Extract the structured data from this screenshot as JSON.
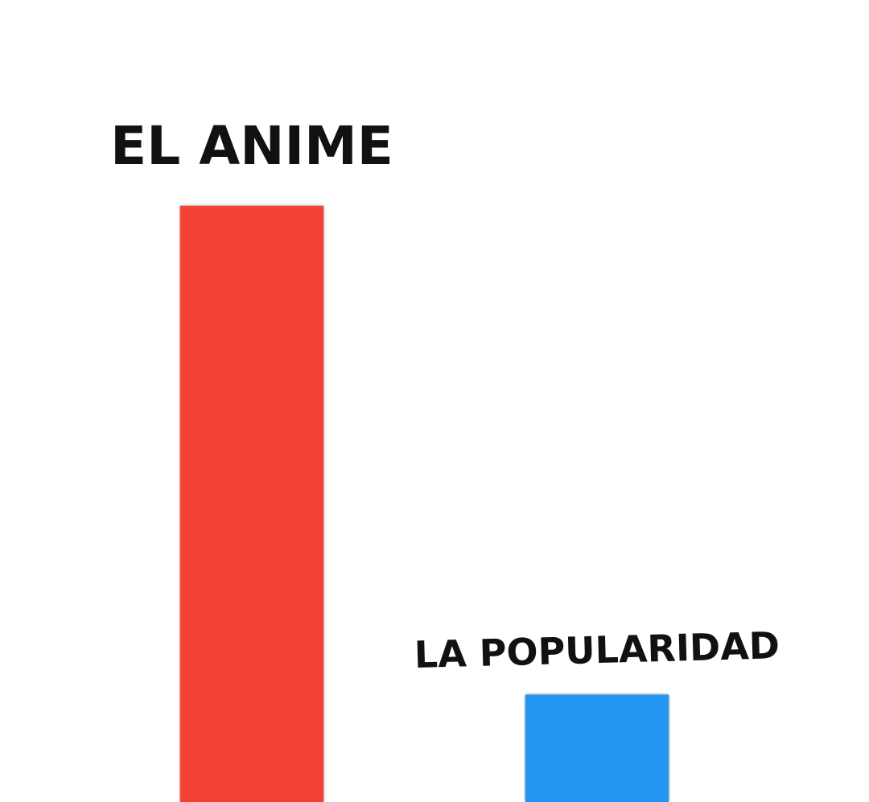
{
  "chart_data": {
    "type": "bar",
    "categories": [
      "EL ANIME",
      "LA POPULARIDAD"
    ],
    "values": [
      100,
      18
    ],
    "colors": [
      "#f44336",
      "#2196f3"
    ],
    "ylim": [
      0,
      100
    ]
  }
}
